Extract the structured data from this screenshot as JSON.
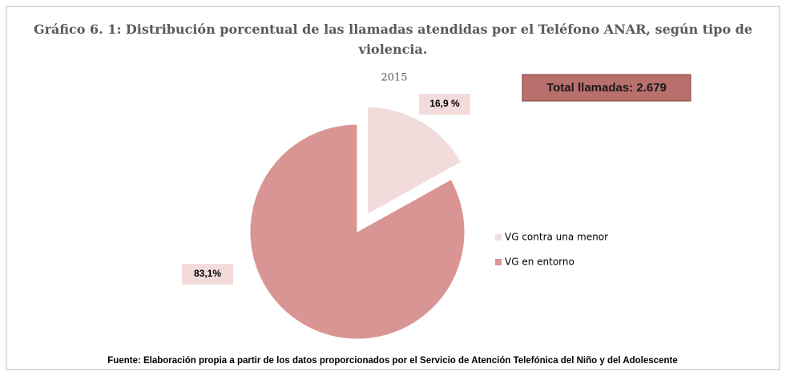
{
  "chart_data": {
    "type": "pie",
    "title": "Gráfico 6. 1: Distribución porcentual de las llamadas atendidas por el Teléfono ANAR, según tipo de violencia.",
    "subtitle": "2015",
    "annotation": "Total llamadas: 2.679",
    "source": "Fuente: Elaboración propia a partir de los datos proporcionados por el Servicio de Atención Telefónica del Niño y del Adolescente",
    "categories": [
      "VG contra una menor",
      "VG en entorno"
    ],
    "values": [
      16.9,
      83.1
    ],
    "value_labels": [
      "16,9 %",
      "83,1%"
    ],
    "colors": [
      "#f2dcdb",
      "#d99594"
    ],
    "exploded": [
      true,
      false
    ],
    "legend": "right"
  }
}
